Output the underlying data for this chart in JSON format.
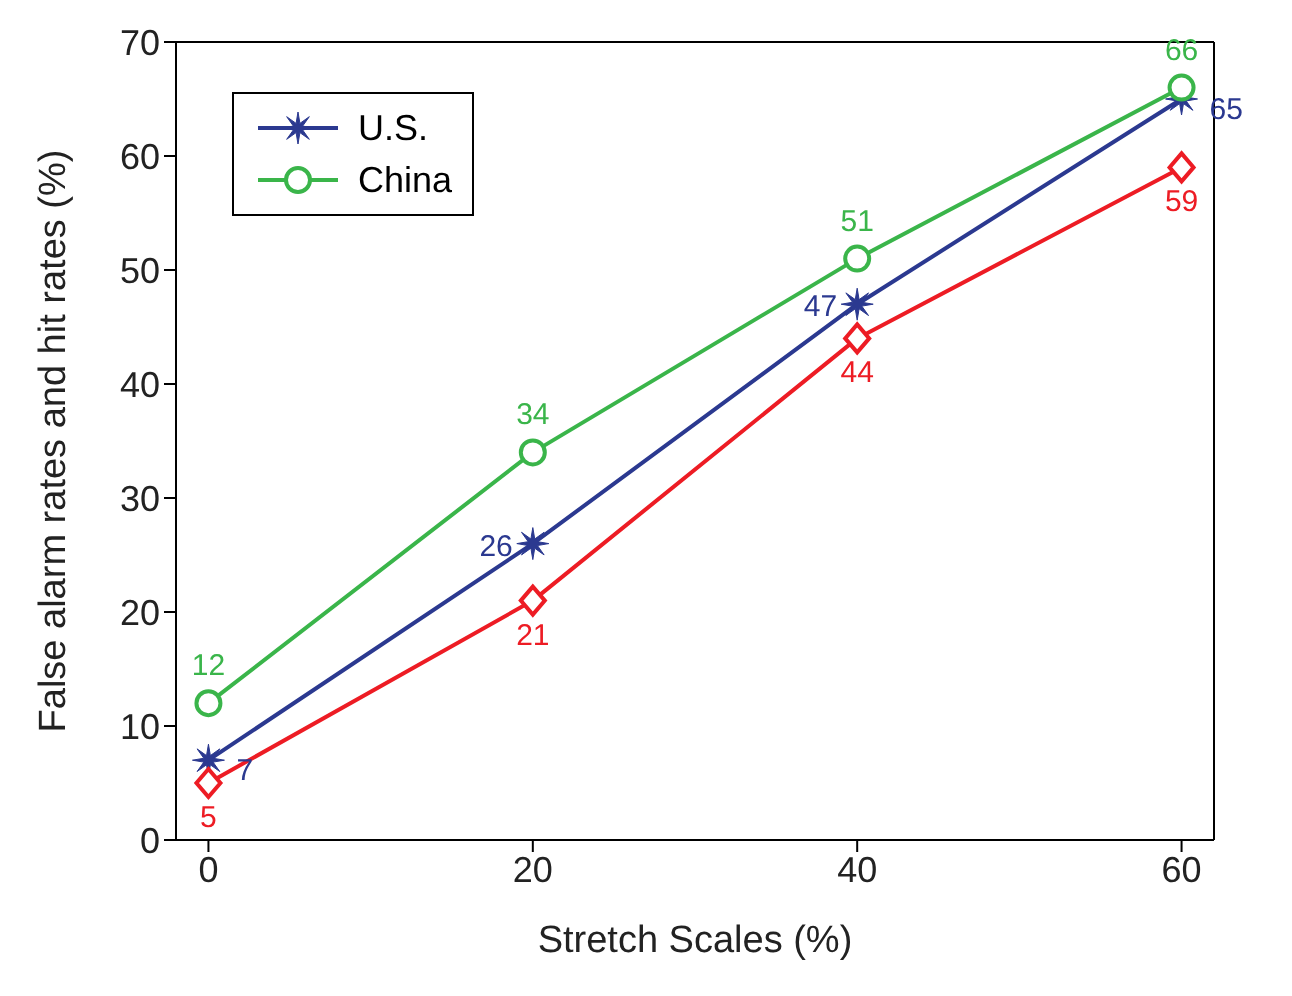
{
  "chart_data": {
    "type": "line",
    "xlabel": "Stretch Scales (%)",
    "ylabel": "False alarm rates and hit rates (%)",
    "x": [
      0,
      20,
      40,
      60
    ],
    "series": [
      {
        "name": "U.S.",
        "color": "#2b3990",
        "values": [
          7,
          26,
          47,
          65
        ],
        "marker": "star"
      },
      {
        "name": "China",
        "color": "#3ab54a",
        "values": [
          12,
          34,
          51,
          66
        ],
        "marker": "circle"
      },
      {
        "color": "#ed1c24",
        "values": [
          5,
          21,
          44,
          59
        ],
        "marker": "diamond"
      }
    ],
    "xlim": [
      -2,
      62
    ],
    "xticks": [
      0,
      20,
      40,
      60
    ],
    "ylim": [
      0,
      70
    ],
    "yticks": [
      0,
      10,
      20,
      30,
      40,
      50,
      60,
      70
    ],
    "grid": false,
    "legend": "top left",
    "data_labels": true,
    "line_style": "solid"
  }
}
